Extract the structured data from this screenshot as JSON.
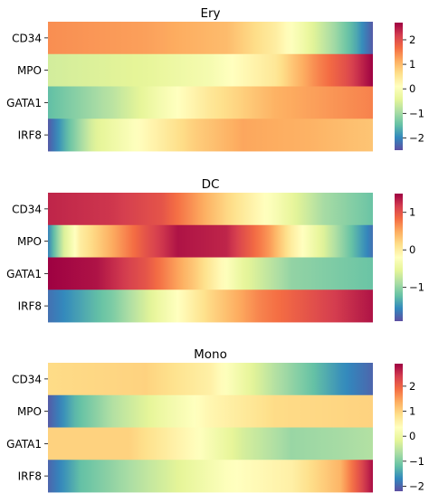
{
  "chart_data": [
    {
      "type": "heatmap",
      "title": "Ery",
      "genes": [
        "CD34",
        "MPO",
        "GATA1",
        "IRF8"
      ],
      "colorbar": {
        "range": [
          -2.5,
          2.7
        ],
        "ticks": [
          -2,
          -1,
          0,
          1,
          2
        ]
      },
      "rows": [
        {
          "gene": "CD34",
          "stops": [
            [
              0,
              1.4
            ],
            [
              0.3,
              1.25
            ],
            [
              0.55,
              1.0
            ],
            [
              0.7,
              0.4
            ],
            [
              0.78,
              -0.15
            ],
            [
              0.88,
              -1.0
            ],
            [
              0.95,
              -1.7
            ],
            [
              1,
              -2.4
            ]
          ]
        },
        {
          "gene": "MPO",
          "stops": [
            [
              0,
              -0.6
            ],
            [
              0.3,
              -0.4
            ],
            [
              0.5,
              -0.1
            ],
            [
              0.7,
              0.5
            ],
            [
              0.82,
              1.4
            ],
            [
              0.92,
              2.0
            ],
            [
              1,
              2.7
            ]
          ]
        },
        {
          "gene": "GATA1",
          "stops": [
            [
              0,
              -1.5
            ],
            [
              0.2,
              -0.8
            ],
            [
              0.35,
              -0.1
            ],
            [
              0.5,
              0.5
            ],
            [
              0.7,
              1.1
            ],
            [
              1,
              1.5
            ]
          ]
        },
        {
          "gene": "IRF8",
          "stops": [
            [
              0,
              -2.4
            ],
            [
              0.06,
              -1.5
            ],
            [
              0.14,
              -0.5
            ],
            [
              0.3,
              0.2
            ],
            [
              0.45,
              0.8
            ],
            [
              0.6,
              1.2
            ],
            [
              0.8,
              1.1
            ],
            [
              1,
              0.9
            ]
          ]
        }
      ]
    },
    {
      "type": "heatmap",
      "title": "DC",
      "genes": [
        "CD34",
        "MPO",
        "GATA1",
        "IRF8"
      ],
      "colorbar": {
        "range": [
          -1.9,
          1.5
        ],
        "ticks": [
          -1,
          0,
          1
        ]
      },
      "rows": [
        {
          "gene": "CD34",
          "stops": [
            [
              0,
              1.3
            ],
            [
              0.2,
              1.2
            ],
            [
              0.35,
              1.0
            ],
            [
              0.45,
              0.6
            ],
            [
              0.55,
              0.2
            ],
            [
              0.7,
              -0.3
            ],
            [
              0.85,
              -0.9
            ],
            [
              1,
              -1.2
            ]
          ]
        },
        {
          "gene": "MPO",
          "stops": [
            [
              0,
              -1.6
            ],
            [
              0.05,
              -0.6
            ],
            [
              0.1,
              0.0
            ],
            [
              0.18,
              0.4
            ],
            [
              0.3,
              1.0
            ],
            [
              0.4,
              1.4
            ],
            [
              0.55,
              1.3
            ],
            [
              0.68,
              0.6
            ],
            [
              0.75,
              0.0
            ],
            [
              0.85,
              -0.6
            ],
            [
              1,
              -1.7
            ]
          ]
        },
        {
          "gene": "GATA1",
          "stops": [
            [
              0,
              1.5
            ],
            [
              0.15,
              1.4
            ],
            [
              0.3,
              1.0
            ],
            [
              0.45,
              0.3
            ],
            [
              0.6,
              -0.5
            ],
            [
              0.75,
              -1.0
            ],
            [
              1,
              -1.2
            ]
          ]
        },
        {
          "gene": "IRF8",
          "stops": [
            [
              0,
              -1.7
            ],
            [
              0.2,
              -1.1
            ],
            [
              0.35,
              -0.4
            ],
            [
              0.5,
              0.2
            ],
            [
              0.65,
              0.7
            ],
            [
              0.8,
              1.0
            ],
            [
              1,
              1.4
            ]
          ]
        }
      ]
    },
    {
      "type": "heatmap",
      "title": "Mono",
      "genes": [
        "CD34",
        "MPO",
        "GATA1",
        "IRF8"
      ],
      "colorbar": {
        "range": [
          -2.2,
          2.9
        ],
        "ticks": [
          -2,
          -1,
          0,
          1,
          2
        ]
      },
      "rows": [
        {
          "gene": "CD34",
          "stops": [
            [
              0,
              0.9
            ],
            [
              0.3,
              1.0
            ],
            [
              0.5,
              0.6
            ],
            [
              0.6,
              0.0
            ],
            [
              0.7,
              -0.6
            ],
            [
              0.82,
              -1.2
            ],
            [
              0.9,
              -1.6
            ],
            [
              1,
              -2.0
            ]
          ]
        },
        {
          "gene": "MPO",
          "stops": [
            [
              0,
              -2.1
            ],
            [
              0.08,
              -1.3
            ],
            [
              0.2,
              -0.6
            ],
            [
              0.35,
              0.0
            ],
            [
              0.5,
              0.5
            ],
            [
              0.7,
              0.9
            ],
            [
              1,
              1.0
            ]
          ]
        },
        {
          "gene": "GATA1",
          "stops": [
            [
              0,
              1.0
            ],
            [
              0.25,
              1.0
            ],
            [
              0.45,
              0.4
            ],
            [
              0.6,
              -0.3
            ],
            [
              0.75,
              -0.8
            ],
            [
              0.9,
              -0.7
            ],
            [
              1,
              -0.6
            ]
          ]
        },
        {
          "gene": "IRF8",
          "stops": [
            [
              0,
              -2.0
            ],
            [
              0.1,
              -1.2
            ],
            [
              0.3,
              -0.5
            ],
            [
              0.55,
              0.3
            ],
            [
              0.75,
              0.6
            ],
            [
              0.9,
              1.3
            ],
            [
              0.96,
              2.2
            ],
            [
              1,
              2.8
            ]
          ]
        }
      ]
    }
  ]
}
